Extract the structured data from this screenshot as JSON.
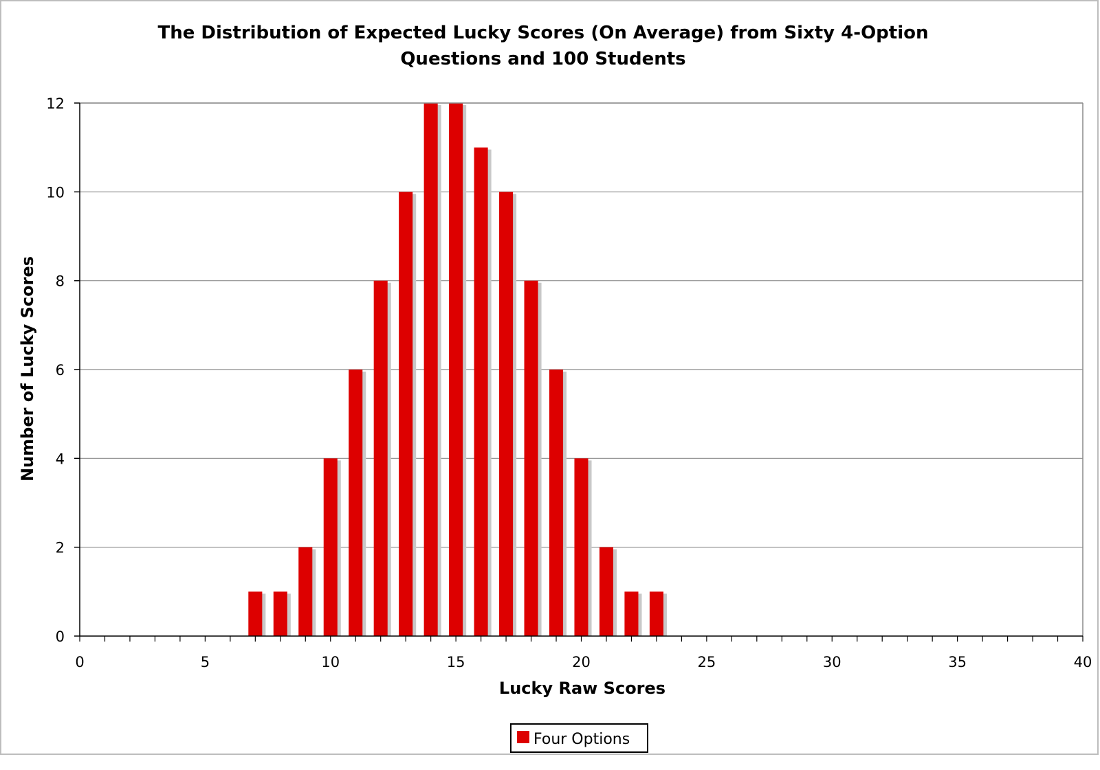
{
  "chart_data": {
    "type": "bar",
    "title_line1": "The Distribution of Expected Lucky Scores (On Average) from Sixty 4-Option",
    "title_line2": "Questions and 100 Students",
    "xlabel": "Lucky Raw Scores",
    "ylabel": "Number of Lucky Scores",
    "xlim": [
      0,
      40
    ],
    "ylim": [
      0,
      12
    ],
    "x_ticks": [
      0,
      5,
      10,
      15,
      20,
      25,
      30,
      35,
      40
    ],
    "y_ticks": [
      0,
      2,
      4,
      6,
      8,
      10,
      12
    ],
    "grid": "horizontal",
    "legend_position": "bottom",
    "series": [
      {
        "name": "Four Options",
        "color": "#dd0000",
        "x": [
          7,
          8,
          9,
          10,
          11,
          12,
          13,
          14,
          15,
          16,
          17,
          18,
          19,
          20,
          21,
          22,
          23
        ],
        "values": [
          1,
          1,
          2,
          4,
          6,
          8,
          10,
          12,
          12,
          11,
          10,
          8,
          6,
          4,
          2,
          1,
          1
        ]
      }
    ]
  }
}
